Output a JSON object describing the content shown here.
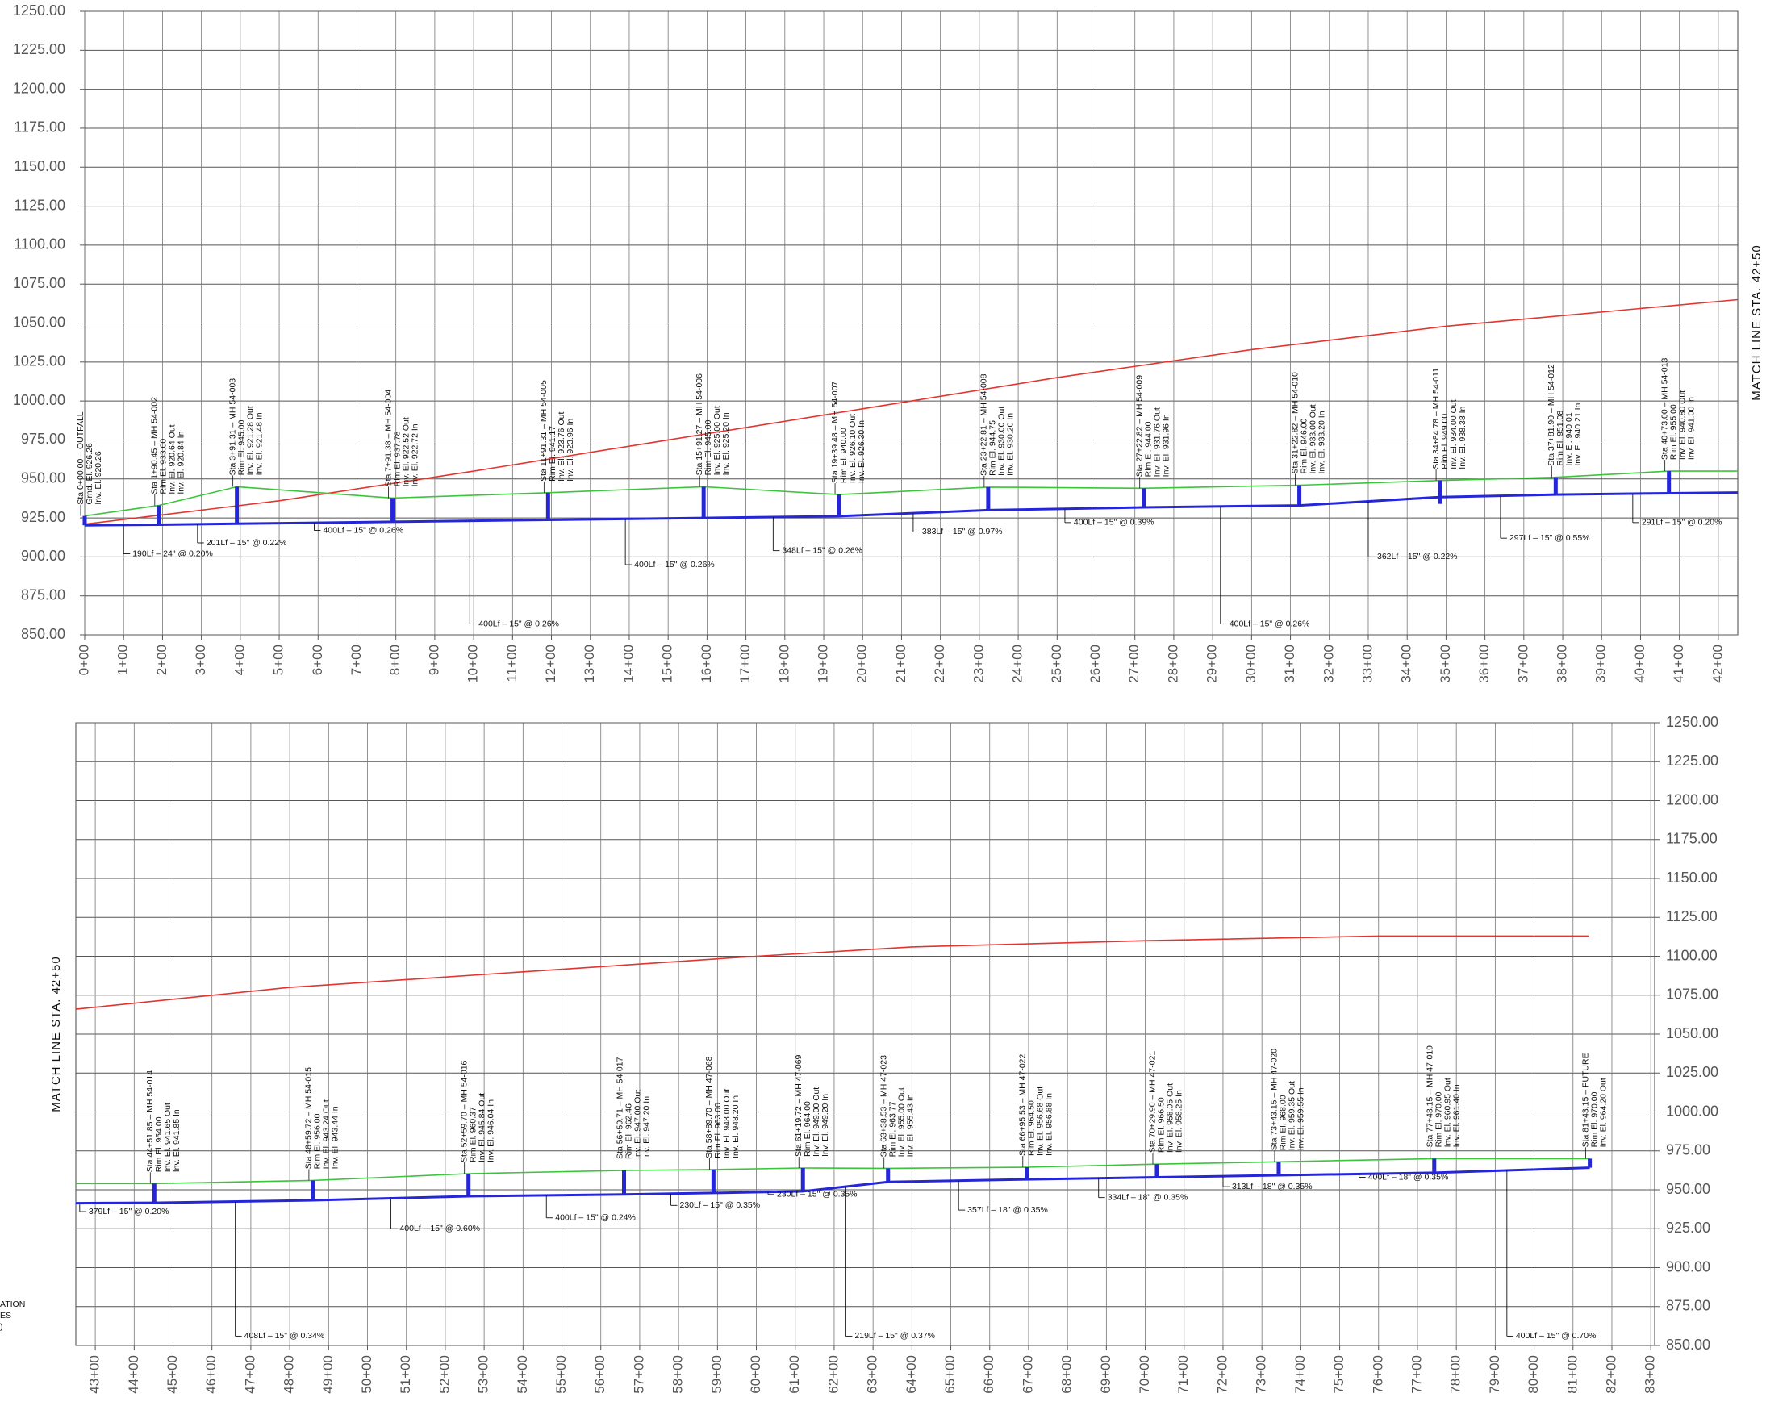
{
  "chart_data": [
    {
      "type": "line",
      "grid": true,
      "annotation": "MATCH LINE STA. 42+50",
      "xlim": [
        0,
        42.5
      ],
      "xticks": [
        {
          "value": 0,
          "label": "0+00"
        },
        {
          "value": 1,
          "label": "1+00"
        },
        {
          "value": 2,
          "label": "2+00"
        },
        {
          "value": 3,
          "label": "3+00"
        },
        {
          "value": 4,
          "label": "4+00"
        },
        {
          "value": 5,
          "label": "5+00"
        },
        {
          "value": 6,
          "label": "6+00"
        },
        {
          "value": 7,
          "label": "7+00"
        },
        {
          "value": 8,
          "label": "8+00"
        },
        {
          "value": 9,
          "label": "9+00"
        },
        {
          "value": 10,
          "label": "10+00"
        },
        {
          "value": 11,
          "label": "11+00"
        },
        {
          "value": 12,
          "label": "12+00"
        },
        {
          "value": 13,
          "label": "13+00"
        },
        {
          "value": 14,
          "label": "14+00"
        },
        {
          "value": 15,
          "label": "15+00"
        },
        {
          "value": 16,
          "label": "16+00"
        },
        {
          "value": 17,
          "label": "17+00"
        },
        {
          "value": 18,
          "label": "18+00"
        },
        {
          "value": 19,
          "label": "19+00"
        },
        {
          "value": 20,
          "label": "20+00"
        },
        {
          "value": 21,
          "label": "21+00"
        },
        {
          "value": 22,
          "label": "22+00"
        },
        {
          "value": 23,
          "label": "23+00"
        },
        {
          "value": 24,
          "label": "24+00"
        },
        {
          "value": 25,
          "label": "25+00"
        },
        {
          "value": 26,
          "label": "26+00"
        },
        {
          "value": 27,
          "label": "27+00"
        },
        {
          "value": 28,
          "label": "28+00"
        },
        {
          "value": 29,
          "label": "29+00"
        },
        {
          "value": 30,
          "label": "30+00"
        },
        {
          "value": 31,
          "label": "31+00"
        },
        {
          "value": 32,
          "label": "32+00"
        },
        {
          "value": 33,
          "label": "33+00"
        },
        {
          "value": 34,
          "label": "34+00"
        },
        {
          "value": 35,
          "label": "35+00"
        },
        {
          "value": 36,
          "label": "36+00"
        },
        {
          "value": 37,
          "label": "37+00"
        },
        {
          "value": 38,
          "label": "38+00"
        },
        {
          "value": 39,
          "label": "39+00"
        },
        {
          "value": 40,
          "label": "40+00"
        },
        {
          "value": 41,
          "label": "41+00"
        },
        {
          "value": 42,
          "label": "42+00"
        }
      ],
      "ylim": [
        850,
        1250
      ],
      "yticks": [
        {
          "value": 850,
          "label": "850.00"
        },
        {
          "value": 875,
          "label": "875.00"
        },
        {
          "value": 900,
          "label": "900.00"
        },
        {
          "value": 925,
          "label": "925.00"
        },
        {
          "value": 950,
          "label": "950.00"
        },
        {
          "value": 975,
          "label": "975.00"
        },
        {
          "value": 1000,
          "label": "1000.00"
        },
        {
          "value": 1025,
          "label": "1025.00"
        },
        {
          "value": 1050,
          "label": "1050.00"
        },
        {
          "value": 1075,
          "label": "1075.00"
        },
        {
          "value": 1100,
          "label": "1100.00"
        },
        {
          "value": 1125,
          "label": "1125.00"
        },
        {
          "value": 1150,
          "label": "1150.00"
        },
        {
          "value": 1175,
          "label": "1175.00"
        },
        {
          "value": 1200,
          "label": "1200.00"
        },
        {
          "value": 1225,
          "label": "1225.00"
        },
        {
          "value": 1250,
          "label": "1250.00"
        }
      ],
      "series": [
        {
          "color": "#e3342f",
          "x": [
            0,
            5,
            10,
            15,
            20,
            25,
            30,
            35,
            42.5
          ],
          "values": [
            921,
            936,
            955,
            975,
            995,
            1015,
            1033,
            1048,
            1065
          ]
        },
        {
          "color": "#3cc43c",
          "x": [
            0,
            1.9045,
            3.9131,
            7.9138,
            11.9131,
            15.9127,
            19.3948,
            23.2281,
            27.2282,
            31.2282,
            34.8478,
            37.819,
            40.73,
            42.5
          ],
          "values": [
            926.26,
            933,
            945,
            937.78,
            941.17,
            945,
            940,
            944.75,
            944,
            946,
            949,
            951.08,
            955,
            955
          ]
        },
        {
          "color": "#2626d9",
          "x": [
            0,
            1.9045,
            3.9131,
            7.9138,
            11.9131,
            15.9127,
            19.3948,
            23.2281,
            27.2282,
            31.2282,
            34.8478,
            37.819,
            40.73,
            42.5
          ],
          "values": [
            920.26,
            920.64,
            921.28,
            922.52,
            923.76,
            925,
            926.1,
            930,
            931.76,
            933,
            938.38,
            940.01,
            940.8,
            941.3
          ]
        }
      ],
      "structures": [
        {
          "x": 0,
          "rim": 926.26,
          "invert": 920.26,
          "label": [
            "Sta 0+00.00 – OUTFALL",
            "Grnd. El. 926.26",
            "Inv. El. 920.26"
          ]
        },
        {
          "x": 1.9045,
          "rim": 933,
          "invert": 920.64,
          "label": [
            "Sta 1+90.45 – MH 54-002",
            "Rim El. 933.00",
            "Inv. El. 920.64 Out",
            "Inv. El. 920.84 In"
          ]
        },
        {
          "x": 3.9131,
          "rim": 945,
          "invert": 921.28,
          "label": [
            "Sta 3+91.31 – MH 54-003",
            "Rim El. 945.00",
            "Inv. El. 921.28 Out",
            "Inv. El. 921.48 In"
          ]
        },
        {
          "x": 7.9138,
          "rim": 937.78,
          "invert": 922.52,
          "label": [
            "Sta 7+91.38 – MH 54-004",
            "Rim El. 937.78",
            "Inv. El. 922.52 Out",
            "Inv. El. 922.72 In"
          ]
        },
        {
          "x": 11.9131,
          "rim": 941.17,
          "invert": 923.76,
          "label": [
            "Sta 11+91.31 – MH 54-005",
            "Rim El. 941.17",
            "Inv. El. 923.76 Out",
            "Inv. El. 923.96 In"
          ]
        },
        {
          "x": 15.9127,
          "rim": 945,
          "invert": 925,
          "label": [
            "Sta 15+91.27 – MH 54-006",
            "Rim El. 945.00",
            "Inv. El. 925.00 Out",
            "Inv. El. 925.20 In"
          ]
        },
        {
          "x": 19.3948,
          "rim": 940,
          "invert": 926.1,
          "label": [
            "Sta 19+39.48 – MH 54-007",
            "Rim El. 940.00",
            "Inv. El. 926.10 Out",
            "Inv. El. 926.30 In"
          ]
        },
        {
          "x": 23.2281,
          "rim": 944.75,
          "invert": 930,
          "label": [
            "Sta 23+22.81 – MH 54-008",
            "Rim El. 944.75",
            "Inv. El. 930.00 Out",
            "Inv. El. 930.20 In"
          ]
        },
        {
          "x": 27.2282,
          "rim": 944,
          "invert": 931.76,
          "label": [
            "Sta 27+22.82 – MH 54-009",
            "Rim El. 944.00",
            "Inv. El. 931.76 Out",
            "Inv. El. 931.96 In"
          ]
        },
        {
          "x": 31.2282,
          "rim": 946,
          "invert": 933,
          "label": [
            "Sta 31+22.82 – MH 54-010",
            "Rim El. 946.00",
            "Inv. El. 933.00 Out",
            "Inv. El. 933.20 In"
          ]
        },
        {
          "x": 34.8478,
          "rim": 949,
          "invert": 934,
          "label": [
            "Sta 34+84.78 – MH 54-011",
            "Rim El. 949.00",
            "Inv. El. 934.00 Out",
            "Inv. El. 938.38 In"
          ]
        },
        {
          "x": 37.819,
          "rim": 951.08,
          "invert": 940.01,
          "label": [
            "Sta 37+81.90 – MH 54-012",
            "Rim El. 951.08",
            "Inv. El. 940.01",
            "Inv. El. 940.21 In"
          ]
        },
        {
          "x": 40.73,
          "rim": 955,
          "invert": 940.8,
          "label": [
            "Sta 40+73.00 – MH 54-013",
            "Rim El. 955.00",
            "Inv. El. 940.80 Out",
            "Inv. El. 941.00 In"
          ]
        }
      ],
      "pipes": [
        "190Lf – 24\" @ 0.20%",
        "201Lf – 15\" @ 0.22%",
        "400Lf – 15\" @ 0.26%",
        "400Lf – 15\" @ 0.26%",
        "400Lf – 15\" @ 0.26%",
        "348Lf – 15\" @ 0.26%",
        "383Lf – 15\" @ 0.97%",
        "400Lf – 15\" @ 0.39%",
        "400Lf – 15\" @ 0.26%",
        "362Lf – 15\" @ 0.22%",
        "297Lf – 15\" @ 0.55%",
        "291Lf – 15\" @ 0.20%"
      ]
    },
    {
      "type": "line",
      "grid": true,
      "annotation": "MATCH LINE STA. 42+50",
      "notes": [
        "ATION",
        "ES",
        ")"
      ],
      "xlim": [
        42.5,
        83.1
      ],
      "xticks": [
        {
          "value": 43,
          "label": "43+00"
        },
        {
          "value": 44,
          "label": "44+00"
        },
        {
          "value": 45,
          "label": "45+00"
        },
        {
          "value": 46,
          "label": "46+00"
        },
        {
          "value": 47,
          "label": "47+00"
        },
        {
          "value": 48,
          "label": "48+00"
        },
        {
          "value": 49,
          "label": "49+00"
        },
        {
          "value": 50,
          "label": "50+00"
        },
        {
          "value": 51,
          "label": "51+00"
        },
        {
          "value": 52,
          "label": "52+00"
        },
        {
          "value": 53,
          "label": "53+00"
        },
        {
          "value": 54,
          "label": "54+00"
        },
        {
          "value": 55,
          "label": "55+00"
        },
        {
          "value": 56,
          "label": "56+00"
        },
        {
          "value": 57,
          "label": "57+00"
        },
        {
          "value": 58,
          "label": "58+00"
        },
        {
          "value": 59,
          "label": "59+00"
        },
        {
          "value": 60,
          "label": "60+00"
        },
        {
          "value": 61,
          "label": "61+00"
        },
        {
          "value": 62,
          "label": "62+00"
        },
        {
          "value": 63,
          "label": "63+00"
        },
        {
          "value": 64,
          "label": "64+00"
        },
        {
          "value": 65,
          "label": "65+00"
        },
        {
          "value": 66,
          "label": "66+00"
        },
        {
          "value": 67,
          "label": "67+00"
        },
        {
          "value": 68,
          "label": "68+00"
        },
        {
          "value": 69,
          "label": "69+00"
        },
        {
          "value": 70,
          "label": "70+00"
        },
        {
          "value": 71,
          "label": "71+00"
        },
        {
          "value": 72,
          "label": "72+00"
        },
        {
          "value": 73,
          "label": "73+00"
        },
        {
          "value": 74,
          "label": "74+00"
        },
        {
          "value": 75,
          "label": "75+00"
        },
        {
          "value": 76,
          "label": "76+00"
        },
        {
          "value": 77,
          "label": "77+00"
        },
        {
          "value": 78,
          "label": "78+00"
        },
        {
          "value": 79,
          "label": "79+00"
        },
        {
          "value": 80,
          "label": "80+00"
        },
        {
          "value": 81,
          "label": "81+00"
        },
        {
          "value": 82,
          "label": "82+00"
        },
        {
          "value": 83,
          "label": "83+00"
        }
      ],
      "ylim": [
        850,
        1250
      ],
      "yticks": [
        {
          "value": 850,
          "label": "850.00"
        },
        {
          "value": 875,
          "label": "875.00"
        },
        {
          "value": 900,
          "label": "900.00"
        },
        {
          "value": 925,
          "label": "925.00"
        },
        {
          "value": 950,
          "label": "950.00"
        },
        {
          "value": 975,
          "label": "975.00"
        },
        {
          "value": 1000,
          "label": "1000.00"
        },
        {
          "value": 1025,
          "label": "1025.00"
        },
        {
          "value": 1050,
          "label": "1050.00"
        },
        {
          "value": 1075,
          "label": "1075.00"
        },
        {
          "value": 1100,
          "label": "1100.00"
        },
        {
          "value": 1125,
          "label": "1125.00"
        },
        {
          "value": 1150,
          "label": "1150.00"
        },
        {
          "value": 1175,
          "label": "1175.00"
        },
        {
          "value": 1200,
          "label": "1200.00"
        },
        {
          "value": 1225,
          "label": "1225.00"
        },
        {
          "value": 1250,
          "label": "1250.00"
        }
      ],
      "series": [
        {
          "color": "#e3342f",
          "x": [
            42.5,
            48,
            54,
            60,
            64,
            70,
            76,
            81.4
          ],
          "values": [
            1066,
            1080,
            1090,
            1100,
            1106,
            1110,
            1113,
            1113
          ]
        },
        {
          "color": "#3cc43c",
          "x": [
            42.5,
            44.5185,
            48.5972,
            52.597,
            56.5971,
            58.897,
            61.1972,
            63.3853,
            66.9553,
            70.299,
            73.4315,
            77.4315,
            81.4315
          ],
          "values": [
            954,
            954,
            956,
            960.37,
            962.46,
            963,
            964,
            963.77,
            964.5,
            966.5,
            968,
            970,
            970
          ]
        },
        {
          "color": "#2626d9",
          "x": [
            42.5,
            44.5185,
            48.5972,
            52.597,
            56.5971,
            58.897,
            61.1972,
            63.3853,
            66.9553,
            70.299,
            73.4315,
            77.4315,
            81.4315
          ],
          "values": [
            941.4,
            941.65,
            943.24,
            945.84,
            947,
            948,
            949,
            955,
            956.68,
            958.05,
            959.35,
            960.95,
            964.2
          ]
        }
      ],
      "structures": [
        {
          "x": 44.5185,
          "rim": 954,
          "invert": 941.65,
          "label": [
            "Sta 44+51.85 – MH 54-014",
            "Rim El. 954.00",
            "Inv. El. 941.65 Out",
            "Inv. El. 941.85 In"
          ]
        },
        {
          "x": 48.5972,
          "rim": 956,
          "invert": 943.24,
          "label": [
            "Sta 48+59.72 – MH 54-015",
            "Rim El. 956.00",
            "Inv. El. 943.24 Out",
            "Inv. El. 943.44 In"
          ]
        },
        {
          "x": 52.597,
          "rim": 960.37,
          "invert": 945.84,
          "label": [
            "Sta 52+59.70 – MH 54-016",
            "Rim El. 960.37",
            "Inv. El. 945.84 Out",
            "Inv. El. 946.04 In"
          ]
        },
        {
          "x": 56.5971,
          "rim": 962.46,
          "invert": 947,
          "label": [
            "Sta 56+59.71 – MH 54-017",
            "Rim El. 962.46",
            "Inv. El. 947.00 Out",
            "Inv. El. 947.20 In"
          ]
        },
        {
          "x": 58.897,
          "rim": 963,
          "invert": 948,
          "label": [
            "Sta 58+89.70 – MH 47-068",
            "Rim El. 963.00",
            "Inv. El. 948.00 Out",
            "Inv. El. 948.20 In"
          ]
        },
        {
          "x": 61.1972,
          "rim": 964,
          "invert": 949,
          "label": [
            "Sta 61+19.72 – MH 47-069",
            "Rim El. 964.00",
            "Inv. El. 949.00 Out",
            "Inv. El. 949.20 In"
          ]
        },
        {
          "x": 63.3853,
          "rim": 963.77,
          "invert": 955,
          "label": [
            "Sta 63+38.53 – MH 47-023",
            "Rim El. 963.77",
            "Inv. El. 955.00 Out",
            "Inv. El. 955.43 In"
          ]
        },
        {
          "x": 66.9553,
          "rim": 964.5,
          "invert": 956.68,
          "label": [
            "Sta 66+95.53 – MH 47-022",
            "Rim El. 964.50",
            "Inv. El. 956.68 Out",
            "Inv. El. 956.88 In"
          ]
        },
        {
          "x": 70.299,
          "rim": 966.5,
          "invert": 958.05,
          "label": [
            "Sta 70+29.90 – MH 47-021",
            "Rim El. 966.50",
            "Inv. El. 958.05 Out",
            "Inv. El. 958.25 In"
          ]
        },
        {
          "x": 73.4315,
          "rim": 968,
          "invert": 959.35,
          "label": [
            "Sta 73+43.15 – MH 47-020",
            "Rim El. 968.00",
            "Inv. El. 959.35 Out",
            "Inv. El. 959.55 In"
          ]
        },
        {
          "x": 77.4315,
          "rim": 970,
          "invert": 960.95,
          "label": [
            "Sta 77+43.15 – MH 47-019",
            "Rim El. 970.00",
            "Inv. El. 960.95 Out",
            "Inv. El. 961.40 In"
          ]
        },
        {
          "x": 81.4315,
          "rim": 970,
          "invert": 964.2,
          "label": [
            "Sta 81+43.15 – FUTURE",
            "Rim El. 970.00",
            "Inv. El. 964.20 Out"
          ]
        }
      ],
      "pipes": [
        "379Lf – 15\" @ 0.20%",
        "408Lf – 15\" @ 0.34%",
        "400Lf – 15\" @ 0.60%",
        "400Lf – 15\" @ 0.24%",
        "230Lf – 15\" @ 0.35%",
        "230Lf – 15\" @ 0.35%",
        "219Lf – 15\" @ 0.37%",
        "357Lf – 18\" @ 0.35%",
        "334Lf – 18\" @ 0.35%",
        "313Lf – 18\" @ 0.35%",
        "400Lf – 18\" @ 0.35%",
        "400Lf – 15\" @ 0.70%"
      ]
    }
  ]
}
